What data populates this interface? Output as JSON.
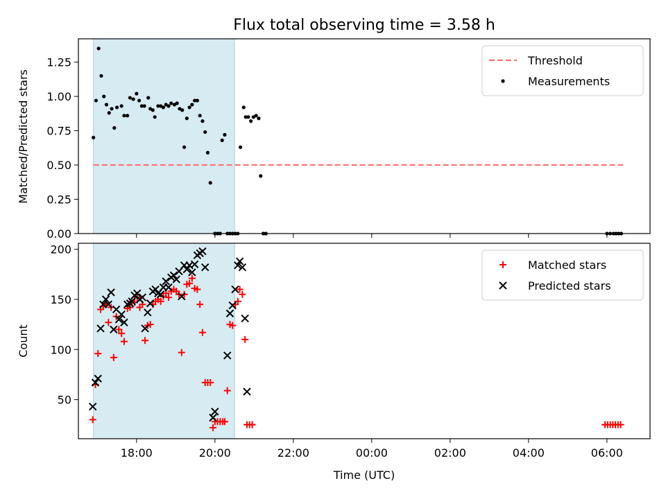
{
  "chart_data": [
    {
      "type": "scatter",
      "title": "Flux total observing time = 3.58 h",
      "xlabel": "",
      "ylabel": "Matched/Predicted stars",
      "xlim": [
        "16:31",
        "07:06"
      ],
      "ylim": [
        0,
        1.42
      ],
      "yticks": [
        "0.00",
        "0.25",
        "0.50",
        "0.75",
        "1.00",
        "1.25"
      ],
      "highlight_span": [
        "16:54",
        "20:30"
      ],
      "threshold": {
        "name": "Threshold",
        "value": 0.5,
        "x_range": [
          "16:54",
          "06:25"
        ],
        "color": "#ff7070"
      },
      "legend_position": "top-right",
      "series": [
        {
          "name": "Measurements",
          "color": "#000000",
          "points": [
            [
              "16:54",
              0.7
            ],
            [
              "16:58",
              0.97
            ],
            [
              "17:02",
              1.35
            ],
            [
              "17:06",
              1.15
            ],
            [
              "17:10",
              1.0
            ],
            [
              "17:14",
              0.94
            ],
            [
              "17:18",
              0.88
            ],
            [
              "17:22",
              0.91
            ],
            [
              "17:26",
              0.77
            ],
            [
              "17:30",
              0.92
            ],
            [
              "17:37",
              0.93
            ],
            [
              "17:41",
              0.86
            ],
            [
              "17:46",
              0.86
            ],
            [
              "17:50",
              0.99
            ],
            [
              "17:55",
              0.98
            ],
            [
              "18:00",
              1.02
            ],
            [
              "18:04",
              0.97
            ],
            [
              "18:08",
              0.93
            ],
            [
              "18:12",
              0.93
            ],
            [
              "18:18",
              0.99
            ],
            [
              "18:21",
              0.91
            ],
            [
              "18:25",
              0.9
            ],
            [
              "18:28",
              0.85
            ],
            [
              "18:33",
              0.93
            ],
            [
              "18:37",
              0.93
            ],
            [
              "18:41",
              0.92
            ],
            [
              "18:45",
              0.94
            ],
            [
              "18:49",
              0.93
            ],
            [
              "18:53",
              0.95
            ],
            [
              "18:58",
              0.94
            ],
            [
              "19:02",
              0.95
            ],
            [
              "19:06",
              0.91
            ],
            [
              "19:10",
              0.9
            ],
            [
              "19:13",
              0.63
            ],
            [
              "19:17",
              0.84
            ],
            [
              "19:21",
              0.92
            ],
            [
              "19:25",
              0.94
            ],
            [
              "19:29",
              0.97
            ],
            [
              "19:33",
              0.97
            ],
            [
              "19:37",
              0.86
            ],
            [
              "19:41",
              0.82
            ],
            [
              "19:45",
              0.74
            ],
            [
              "19:49",
              0.59
            ],
            [
              "19:53",
              0.37
            ],
            [
              "20:00",
              0.0
            ],
            [
              "20:04",
              0.0
            ],
            [
              "20:08",
              0.0
            ],
            [
              "20:11",
              0.68
            ],
            [
              "20:15",
              0.72
            ],
            [
              "20:19",
              0.0
            ],
            [
              "20:23",
              0.0
            ],
            [
              "20:27",
              0.0
            ],
            [
              "20:31",
              0.0
            ],
            [
              "20:35",
              0.0
            ],
            [
              "20:39",
              0.63
            ],
            [
              "20:44",
              0.92
            ],
            [
              "20:47",
              0.85
            ],
            [
              "20:51",
              0.85
            ],
            [
              "20:55",
              0.82
            ],
            [
              "20:59",
              0.85
            ],
            [
              "21:03",
              0.86
            ],
            [
              "21:07",
              0.84
            ],
            [
              "21:10",
              0.42
            ],
            [
              "21:14",
              0.0
            ],
            [
              "21:18",
              0.0
            ],
            [
              "06:00",
              0.0
            ],
            [
              "06:05",
              0.0
            ],
            [
              "06:10",
              0.0
            ],
            [
              "06:14",
              0.0
            ],
            [
              "06:18",
              0.0
            ],
            [
              "06:22",
              0.0
            ]
          ]
        }
      ]
    },
    {
      "type": "scatter",
      "title": "",
      "xlabel": "Time (UTC)",
      "ylabel": "Count",
      "xlim": [
        "16:31",
        "07:06"
      ],
      "ylim": [
        11,
        206
      ],
      "xticks": [
        "18:00",
        "20:00",
        "22:00",
        "00:00",
        "02:00",
        "04:00",
        "06:00"
      ],
      "yticks": [
        "50",
        "100",
        "150",
        "200"
      ],
      "highlight_span": [
        "16:54",
        "20:30"
      ],
      "legend_position": "top-right",
      "series": [
        {
          "name": "Matched stars",
          "color": "#ff0000",
          "marker": "plus",
          "points": [
            [
              "16:53",
              30
            ],
            [
              "16:57",
              65
            ],
            [
              "17:01",
              96
            ],
            [
              "17:05",
              140
            ],
            [
              "17:09",
              143
            ],
            [
              "17:13",
              145
            ],
            [
              "17:17",
              127
            ],
            [
              "17:21",
              142
            ],
            [
              "17:25",
              92
            ],
            [
              "17:29",
              133
            ],
            [
              "17:33",
              120
            ],
            [
              "17:37",
              116
            ],
            [
              "17:41",
              108
            ],
            [
              "17:46",
              141
            ],
            [
              "17:50",
              142
            ],
            [
              "17:53",
              148
            ],
            [
              "17:57",
              147
            ],
            [
              "18:01",
              152
            ],
            [
              "18:05",
              142
            ],
            [
              "18:09",
              145
            ],
            [
              "18:13",
              109
            ],
            [
              "18:17",
              124
            ],
            [
              "18:21",
              125
            ],
            [
              "18:25",
              145
            ],
            [
              "18:29",
              148
            ],
            [
              "18:33",
              150
            ],
            [
              "18:37",
              148
            ],
            [
              "18:41",
              153
            ],
            [
              "18:45",
              156
            ],
            [
              "18:49",
              152
            ],
            [
              "18:53",
              158
            ],
            [
              "18:57",
              160
            ],
            [
              "19:01",
              158
            ],
            [
              "19:05",
              155
            ],
            [
              "19:09",
              97
            ],
            [
              "19:13",
              155
            ],
            [
              "19:17",
              165
            ],
            [
              "19:21",
              166
            ],
            [
              "19:25",
              171
            ],
            [
              "19:29",
              161
            ],
            [
              "19:33",
              160
            ],
            [
              "19:37",
              145
            ],
            [
              "19:41",
              117
            ],
            [
              "19:45",
              67
            ],
            [
              "19:49",
              67
            ],
            [
              "19:53",
              67
            ],
            [
              "19:57",
              22
            ],
            [
              "20:00",
              28
            ],
            [
              "20:04",
              28
            ],
            [
              "20:08",
              28
            ],
            [
              "20:12",
              28
            ],
            [
              "20:15",
              28
            ],
            [
              "20:19",
              59
            ],
            [
              "20:23",
              125
            ],
            [
              "20:27",
              124
            ],
            [
              "20:31",
              145
            ],
            [
              "20:35",
              148
            ],
            [
              "20:38",
              160
            ],
            [
              "20:42",
              155
            ],
            [
              "20:46",
              110
            ],
            [
              "20:49",
              25
            ],
            [
              "20:53",
              25
            ],
            [
              "20:57",
              25
            ],
            [
              "05:57",
              25
            ],
            [
              "06:01",
              25
            ],
            [
              "06:05",
              25
            ],
            [
              "06:09",
              25
            ],
            [
              "06:13",
              25
            ],
            [
              "06:17",
              25
            ],
            [
              "06:21",
              25
            ]
          ]
        },
        {
          "name": "Predicted stars",
          "color": "#000000",
          "marker": "x",
          "points": [
            [
              "16:53",
              43
            ],
            [
              "16:57",
              67
            ],
            [
              "17:01",
              71
            ],
            [
              "17:05",
              121
            ],
            [
              "17:09",
              145
            ],
            [
              "17:13",
              150
            ],
            [
              "17:17",
              145
            ],
            [
              "17:21",
              157
            ],
            [
              "17:25",
              120
            ],
            [
              "17:29",
              140
            ],
            [
              "17:33",
              130
            ],
            [
              "17:37",
              135
            ],
            [
              "17:41",
              127
            ],
            [
              "17:46",
              145
            ],
            [
              "17:50",
              146
            ],
            [
              "17:53",
              148
            ],
            [
              "17:57",
              154
            ],
            [
              "18:01",
              156
            ],
            [
              "18:05",
              150
            ],
            [
              "18:09",
              152
            ],
            [
              "18:13",
              121
            ],
            [
              "18:17",
              137
            ],
            [
              "18:21",
              146
            ],
            [
              "18:25",
              158
            ],
            [
              "18:29",
              160
            ],
            [
              "18:33",
              156
            ],
            [
              "18:37",
              155
            ],
            [
              "18:41",
              162
            ],
            [
              "18:45",
              168
            ],
            [
              "18:49",
              162
            ],
            [
              "18:53",
              172
            ],
            [
              "18:57",
              174
            ],
            [
              "19:01",
              170
            ],
            [
              "19:05",
              178
            ],
            [
              "19:09",
              153
            ],
            [
              "19:13",
              184
            ],
            [
              "19:17",
              180
            ],
            [
              "19:21",
              184
            ],
            [
              "19:25",
              177
            ],
            [
              "19:29",
              185
            ],
            [
              "19:33",
              194
            ],
            [
              "19:37",
              196
            ],
            [
              "19:41",
              198
            ],
            [
              "19:45",
              182
            ],
            [
              "19:57",
              32
            ],
            [
              "20:00",
              38
            ],
            [
              "20:19",
              94
            ],
            [
              "20:23",
              136
            ],
            [
              "20:27",
              144
            ],
            [
              "20:31",
              160
            ],
            [
              "20:35",
              184
            ],
            [
              "20:38",
              188
            ],
            [
              "20:42",
              182
            ],
            [
              "20:46",
              131
            ],
            [
              "20:49",
              58
            ]
          ]
        }
      ]
    }
  ]
}
